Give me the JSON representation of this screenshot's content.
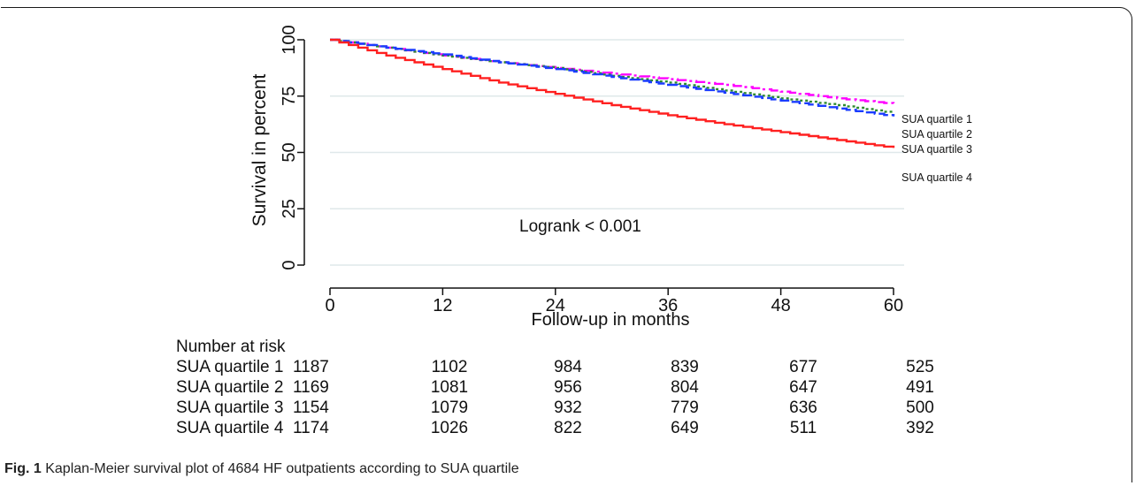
{
  "caption": {
    "label": "Fig. 1",
    "text": "Kaplan-Meier survival plot of 4684 HF outpatients according to SUA quartile"
  },
  "annotation": "Logrank < 0.001",
  "chart_data": {
    "type": "line",
    "subtype": "kaplan-meier step",
    "ylabel": "Survival in percent",
    "xlabel": "Follow-up in months",
    "xlim": [
      0,
      60
    ],
    "ylim": [
      0,
      100
    ],
    "xticks": [
      0,
      12,
      24,
      36,
      48,
      60
    ],
    "yticks": [
      0,
      25,
      50,
      75,
      100
    ],
    "grid": "horizontal",
    "series": [
      {
        "name": "SUA quartile 1",
        "color": "#ff00ff",
        "dash": "dash-dot",
        "x": [
          0,
          6,
          12,
          18,
          24,
          30,
          36,
          42,
          48,
          54,
          60
        ],
        "y": [
          100,
          96.5,
          93,
          90,
          87.5,
          85,
          82.5,
          80,
          77,
          74,
          71.5
        ]
      },
      {
        "name": "SUA quartile 2",
        "color": "#2e8b2e",
        "dash": "dotted",
        "x": [
          0,
          6,
          12,
          18,
          24,
          30,
          36,
          42,
          48,
          54,
          60
        ],
        "y": [
          100,
          96.5,
          93,
          90,
          87.5,
          84,
          81,
          77.5,
          74,
          71,
          67.5
        ]
      },
      {
        "name": "SUA quartile 3",
        "color": "#1a3cff",
        "dash": "dashed",
        "x": [
          0,
          6,
          12,
          18,
          24,
          30,
          36,
          42,
          48,
          54,
          60
        ],
        "y": [
          100,
          96.5,
          93.5,
          90,
          87,
          83.5,
          80,
          76.5,
          73,
          69.5,
          66
        ]
      },
      {
        "name": "SUA quartile 4",
        "color": "#ff2020",
        "dash": "solid",
        "x": [
          0,
          6,
          12,
          18,
          24,
          30,
          36,
          42,
          48,
          54,
          60
        ],
        "y": [
          100,
          93,
          87,
          81,
          76,
          71,
          66.5,
          62.5,
          59,
          55.5,
          52
        ]
      }
    ],
    "risk_table": {
      "title": "Number at risk",
      "times": [
        0,
        12,
        24,
        36,
        48,
        60
      ],
      "rows": [
        {
          "label": "SUA quartile 1",
          "values": [
            "1187",
            "1102",
            "984",
            "839",
            "677",
            "525"
          ]
        },
        {
          "label": "SUA quartile 2",
          "values": [
            "1169",
            "1081",
            "956",
            "804",
            "647",
            "491"
          ]
        },
        {
          "label": "SUA quartile 3",
          "values": [
            "1154",
            "1079",
            "932",
            "779",
            "636",
            "500"
          ]
        },
        {
          "label": "SUA quartile 4",
          "values": [
            "1174",
            "1026",
            "822",
            "649",
            "511",
            "392"
          ]
        }
      ]
    }
  }
}
